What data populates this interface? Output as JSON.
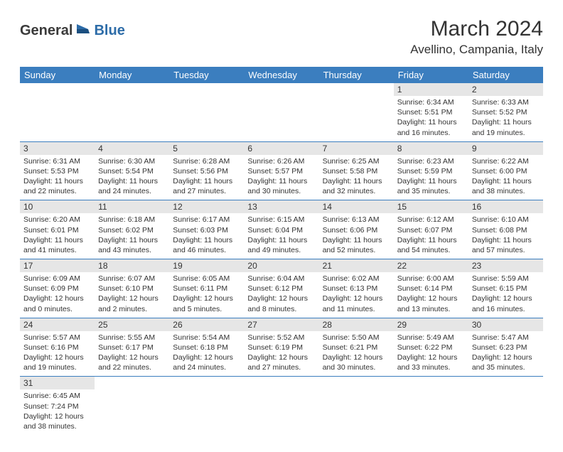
{
  "logo": {
    "general": "General",
    "blue": "Blue"
  },
  "title": "March 2024",
  "location": "Avellino, Campania, Italy",
  "colors": {
    "header_bg": "#3b7ebf",
    "header_text": "#ffffff",
    "daynum_bg": "#e6e6e6",
    "border": "#3b7ebf",
    "text": "#333333",
    "logo_blue": "#2d6ca8"
  },
  "weekdays": [
    "Sunday",
    "Monday",
    "Tuesday",
    "Wednesday",
    "Thursday",
    "Friday",
    "Saturday"
  ],
  "weeks": [
    [
      null,
      null,
      null,
      null,
      null,
      {
        "n": "1",
        "sunrise": "Sunrise: 6:34 AM",
        "sunset": "Sunset: 5:51 PM",
        "daylight": "Daylight: 11 hours and 16 minutes."
      },
      {
        "n": "2",
        "sunrise": "Sunrise: 6:33 AM",
        "sunset": "Sunset: 5:52 PM",
        "daylight": "Daylight: 11 hours and 19 minutes."
      }
    ],
    [
      {
        "n": "3",
        "sunrise": "Sunrise: 6:31 AM",
        "sunset": "Sunset: 5:53 PM",
        "daylight": "Daylight: 11 hours and 22 minutes."
      },
      {
        "n": "4",
        "sunrise": "Sunrise: 6:30 AM",
        "sunset": "Sunset: 5:54 PM",
        "daylight": "Daylight: 11 hours and 24 minutes."
      },
      {
        "n": "5",
        "sunrise": "Sunrise: 6:28 AM",
        "sunset": "Sunset: 5:56 PM",
        "daylight": "Daylight: 11 hours and 27 minutes."
      },
      {
        "n": "6",
        "sunrise": "Sunrise: 6:26 AM",
        "sunset": "Sunset: 5:57 PM",
        "daylight": "Daylight: 11 hours and 30 minutes."
      },
      {
        "n": "7",
        "sunrise": "Sunrise: 6:25 AM",
        "sunset": "Sunset: 5:58 PM",
        "daylight": "Daylight: 11 hours and 32 minutes."
      },
      {
        "n": "8",
        "sunrise": "Sunrise: 6:23 AM",
        "sunset": "Sunset: 5:59 PM",
        "daylight": "Daylight: 11 hours and 35 minutes."
      },
      {
        "n": "9",
        "sunrise": "Sunrise: 6:22 AM",
        "sunset": "Sunset: 6:00 PM",
        "daylight": "Daylight: 11 hours and 38 minutes."
      }
    ],
    [
      {
        "n": "10",
        "sunrise": "Sunrise: 6:20 AM",
        "sunset": "Sunset: 6:01 PM",
        "daylight": "Daylight: 11 hours and 41 minutes."
      },
      {
        "n": "11",
        "sunrise": "Sunrise: 6:18 AM",
        "sunset": "Sunset: 6:02 PM",
        "daylight": "Daylight: 11 hours and 43 minutes."
      },
      {
        "n": "12",
        "sunrise": "Sunrise: 6:17 AM",
        "sunset": "Sunset: 6:03 PM",
        "daylight": "Daylight: 11 hours and 46 minutes."
      },
      {
        "n": "13",
        "sunrise": "Sunrise: 6:15 AM",
        "sunset": "Sunset: 6:04 PM",
        "daylight": "Daylight: 11 hours and 49 minutes."
      },
      {
        "n": "14",
        "sunrise": "Sunrise: 6:13 AM",
        "sunset": "Sunset: 6:06 PM",
        "daylight": "Daylight: 11 hours and 52 minutes."
      },
      {
        "n": "15",
        "sunrise": "Sunrise: 6:12 AM",
        "sunset": "Sunset: 6:07 PM",
        "daylight": "Daylight: 11 hours and 54 minutes."
      },
      {
        "n": "16",
        "sunrise": "Sunrise: 6:10 AM",
        "sunset": "Sunset: 6:08 PM",
        "daylight": "Daylight: 11 hours and 57 minutes."
      }
    ],
    [
      {
        "n": "17",
        "sunrise": "Sunrise: 6:09 AM",
        "sunset": "Sunset: 6:09 PM",
        "daylight": "Daylight: 12 hours and 0 minutes."
      },
      {
        "n": "18",
        "sunrise": "Sunrise: 6:07 AM",
        "sunset": "Sunset: 6:10 PM",
        "daylight": "Daylight: 12 hours and 2 minutes."
      },
      {
        "n": "19",
        "sunrise": "Sunrise: 6:05 AM",
        "sunset": "Sunset: 6:11 PM",
        "daylight": "Daylight: 12 hours and 5 minutes."
      },
      {
        "n": "20",
        "sunrise": "Sunrise: 6:04 AM",
        "sunset": "Sunset: 6:12 PM",
        "daylight": "Daylight: 12 hours and 8 minutes."
      },
      {
        "n": "21",
        "sunrise": "Sunrise: 6:02 AM",
        "sunset": "Sunset: 6:13 PM",
        "daylight": "Daylight: 12 hours and 11 minutes."
      },
      {
        "n": "22",
        "sunrise": "Sunrise: 6:00 AM",
        "sunset": "Sunset: 6:14 PM",
        "daylight": "Daylight: 12 hours and 13 minutes."
      },
      {
        "n": "23",
        "sunrise": "Sunrise: 5:59 AM",
        "sunset": "Sunset: 6:15 PM",
        "daylight": "Daylight: 12 hours and 16 minutes."
      }
    ],
    [
      {
        "n": "24",
        "sunrise": "Sunrise: 5:57 AM",
        "sunset": "Sunset: 6:16 PM",
        "daylight": "Daylight: 12 hours and 19 minutes."
      },
      {
        "n": "25",
        "sunrise": "Sunrise: 5:55 AM",
        "sunset": "Sunset: 6:17 PM",
        "daylight": "Daylight: 12 hours and 22 minutes."
      },
      {
        "n": "26",
        "sunrise": "Sunrise: 5:54 AM",
        "sunset": "Sunset: 6:18 PM",
        "daylight": "Daylight: 12 hours and 24 minutes."
      },
      {
        "n": "27",
        "sunrise": "Sunrise: 5:52 AM",
        "sunset": "Sunset: 6:19 PM",
        "daylight": "Daylight: 12 hours and 27 minutes."
      },
      {
        "n": "28",
        "sunrise": "Sunrise: 5:50 AM",
        "sunset": "Sunset: 6:21 PM",
        "daylight": "Daylight: 12 hours and 30 minutes."
      },
      {
        "n": "29",
        "sunrise": "Sunrise: 5:49 AM",
        "sunset": "Sunset: 6:22 PM",
        "daylight": "Daylight: 12 hours and 33 minutes."
      },
      {
        "n": "30",
        "sunrise": "Sunrise: 5:47 AM",
        "sunset": "Sunset: 6:23 PM",
        "daylight": "Daylight: 12 hours and 35 minutes."
      }
    ],
    [
      {
        "n": "31",
        "sunrise": "Sunrise: 6:45 AM",
        "sunset": "Sunset: 7:24 PM",
        "daylight": "Daylight: 12 hours and 38 minutes."
      },
      null,
      null,
      null,
      null,
      null,
      null
    ]
  ]
}
